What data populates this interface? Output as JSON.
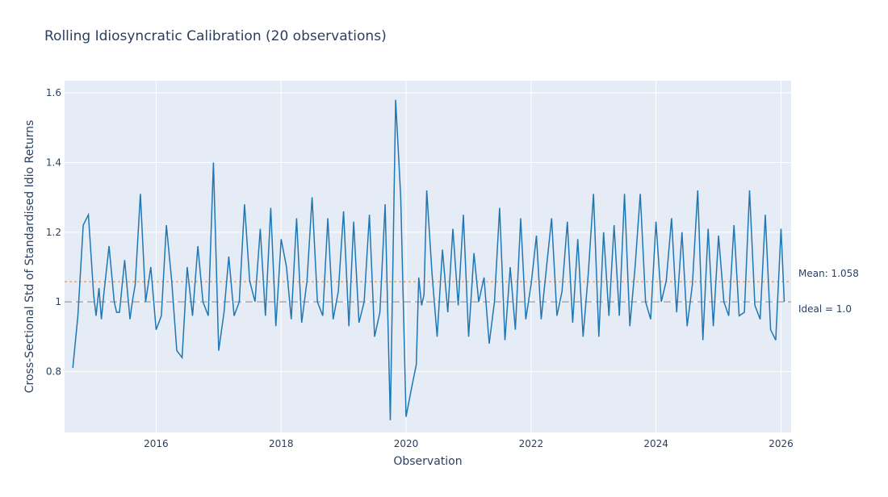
{
  "chart_data": {
    "type": "line",
    "title": "Rolling Idiosyncratic Calibration (20 observations)",
    "xlabel": "Observation",
    "ylabel": "Cross-Sectional Std of Standardised Idio Returns",
    "xlim": [
      "2014-07-15",
      "2026-03-01"
    ],
    "ylim": [
      0.625,
      1.635
    ],
    "x_ticks": [
      "2016",
      "2018",
      "2020",
      "2022",
      "2024",
      "2026"
    ],
    "y_ticks": [
      "0.8",
      "1",
      "1.2",
      "1.4",
      "1.6"
    ],
    "y_tick_values": [
      0.8,
      1.0,
      1.2,
      1.4,
      1.6
    ],
    "grid": true,
    "series_color": "#1f77b4",
    "mean_color": "#ff7f0e",
    "ideal_color": "#888888",
    "plot_bg": "#e5ecf6",
    "reference_lines": [
      {
        "value": 1.058,
        "label": "Mean: 1.058",
        "style": "dotted"
      },
      {
        "value": 1.0,
        "label": "Ideal = 1.0",
        "style": "dashed"
      }
    ],
    "series": [
      {
        "x": [
          "2014-09-01",
          "2014-10-01",
          "2014-11-01",
          "2014-12-01",
          "2015-01-01",
          "2015-01-15",
          "2015-02-01",
          "2015-02-15",
          "2015-03-01",
          "2015-04-01",
          "2015-05-01",
          "2015-05-15",
          "2015-06-01",
          "2015-07-01",
          "2015-08-01",
          "2015-08-15",
          "2015-09-01",
          "2015-10-01",
          "2015-11-01",
          "2015-12-01",
          "2016-01-01",
          "2016-02-01",
          "2016-03-01",
          "2016-04-01",
          "2016-05-01",
          "2016-06-01",
          "2016-07-01",
          "2016-08-01",
          "2016-09-01",
          "2016-10-01",
          "2016-11-01",
          "2016-12-01",
          "2017-01-01",
          "2017-02-01",
          "2017-03-01",
          "2017-04-01",
          "2017-05-01",
          "2017-06-01",
          "2017-07-01",
          "2017-08-01",
          "2017-09-01",
          "2017-10-01",
          "2017-11-01",
          "2017-12-01",
          "2018-01-01",
          "2018-02-01",
          "2018-03-01",
          "2018-04-01",
          "2018-05-01",
          "2018-06-01",
          "2018-07-01",
          "2018-08-01",
          "2018-09-01",
          "2018-10-01",
          "2018-11-01",
          "2018-12-01",
          "2019-01-01",
          "2019-02-01",
          "2019-03-01",
          "2019-04-01",
          "2019-05-01",
          "2019-06-01",
          "2019-07-01",
          "2019-08-01",
          "2019-09-01",
          "2019-10-01",
          "2019-11-01",
          "2019-12-01",
          "2020-01-01",
          "2020-02-01",
          "2020-03-01",
          "2020-03-15",
          "2020-04-01",
          "2020-04-15",
          "2020-05-01",
          "2020-06-01",
          "2020-07-01",
          "2020-08-01",
          "2020-09-01",
          "2020-10-01",
          "2020-11-01",
          "2020-12-01",
          "2021-01-01",
          "2021-02-01",
          "2021-03-01",
          "2021-04-01",
          "2021-05-01",
          "2021-06-01",
          "2021-07-01",
          "2021-08-01",
          "2021-09-01",
          "2021-10-01",
          "2021-11-01",
          "2021-12-01",
          "2022-01-01",
          "2022-02-01",
          "2022-03-01",
          "2022-04-01",
          "2022-05-01",
          "2022-06-01",
          "2022-07-01",
          "2022-08-01",
          "2022-09-01",
          "2022-10-01",
          "2022-11-01",
          "2022-12-01",
          "2023-01-01",
          "2023-02-01",
          "2023-03-01",
          "2023-04-01",
          "2023-05-01",
          "2023-06-01",
          "2023-07-01",
          "2023-08-01",
          "2023-09-01",
          "2023-10-01",
          "2023-11-01",
          "2023-12-01",
          "2024-01-01",
          "2024-02-01",
          "2024-03-01",
          "2024-04-01",
          "2024-05-01",
          "2024-06-01",
          "2024-07-01",
          "2024-08-01",
          "2024-09-01",
          "2024-10-01",
          "2024-11-01",
          "2024-12-01",
          "2025-01-01",
          "2025-02-01",
          "2025-03-01",
          "2025-04-01",
          "2025-05-01",
          "2025-06-01",
          "2025-07-01",
          "2025-08-01",
          "2025-09-01",
          "2025-10-01",
          "2025-11-01",
          "2025-12-01",
          "2026-01-01",
          "2026-01-20"
        ],
        "values": [
          0.81,
          0.96,
          1.22,
          1.25,
          1.02,
          0.96,
          1.04,
          0.95,
          1.02,
          1.16,
          1.0,
          0.97,
          0.97,
          1.12,
          0.95,
          1.0,
          1.05,
          1.31,
          1.0,
          1.1,
          0.92,
          0.96,
          1.22,
          1.06,
          0.86,
          0.84,
          1.1,
          0.96,
          1.16,
          1.0,
          0.96,
          1.4,
          0.86,
          0.97,
          1.13,
          0.96,
          1.0,
          1.28,
          1.06,
          1.0,
          1.21,
          0.96,
          1.27,
          0.93,
          1.18,
          1.1,
          0.95,
          1.24,
          0.94,
          1.06,
          1.3,
          1.0,
          0.96,
          1.24,
          0.95,
          1.03,
          1.26,
          0.93,
          1.23,
          0.94,
          1.0,
          1.25,
          0.9,
          0.97,
          1.28,
          0.66,
          1.58,
          1.3,
          0.67,
          0.75,
          0.82,
          1.07,
          0.99,
          1.02,
          1.32,
          1.08,
          0.9,
          1.15,
          0.97,
          1.21,
          0.99,
          1.25,
          0.9,
          1.14,
          1.0,
          1.07,
          0.88,
          1.0,
          1.27,
          0.89,
          1.1,
          0.92,
          1.24,
          0.95,
          1.05,
          1.19,
          0.95,
          1.1,
          1.24,
          0.96,
          1.03,
          1.23,
          0.94,
          1.18,
          0.9,
          1.08,
          1.31,
          0.9,
          1.2,
          0.96,
          1.22,
          0.96,
          1.31,
          0.93,
          1.1,
          1.31,
          1.0,
          0.95,
          1.23,
          1.0,
          1.06,
          1.24,
          0.97,
          1.2,
          0.93,
          1.05,
          1.32,
          0.89,
          1.21,
          0.93,
          1.19,
          1.0,
          0.96,
          1.22,
          0.96,
          0.97,
          1.32,
          0.99,
          0.95,
          1.25,
          0.92,
          0.89,
          1.21,
          1.0
        ]
      }
    ]
  }
}
